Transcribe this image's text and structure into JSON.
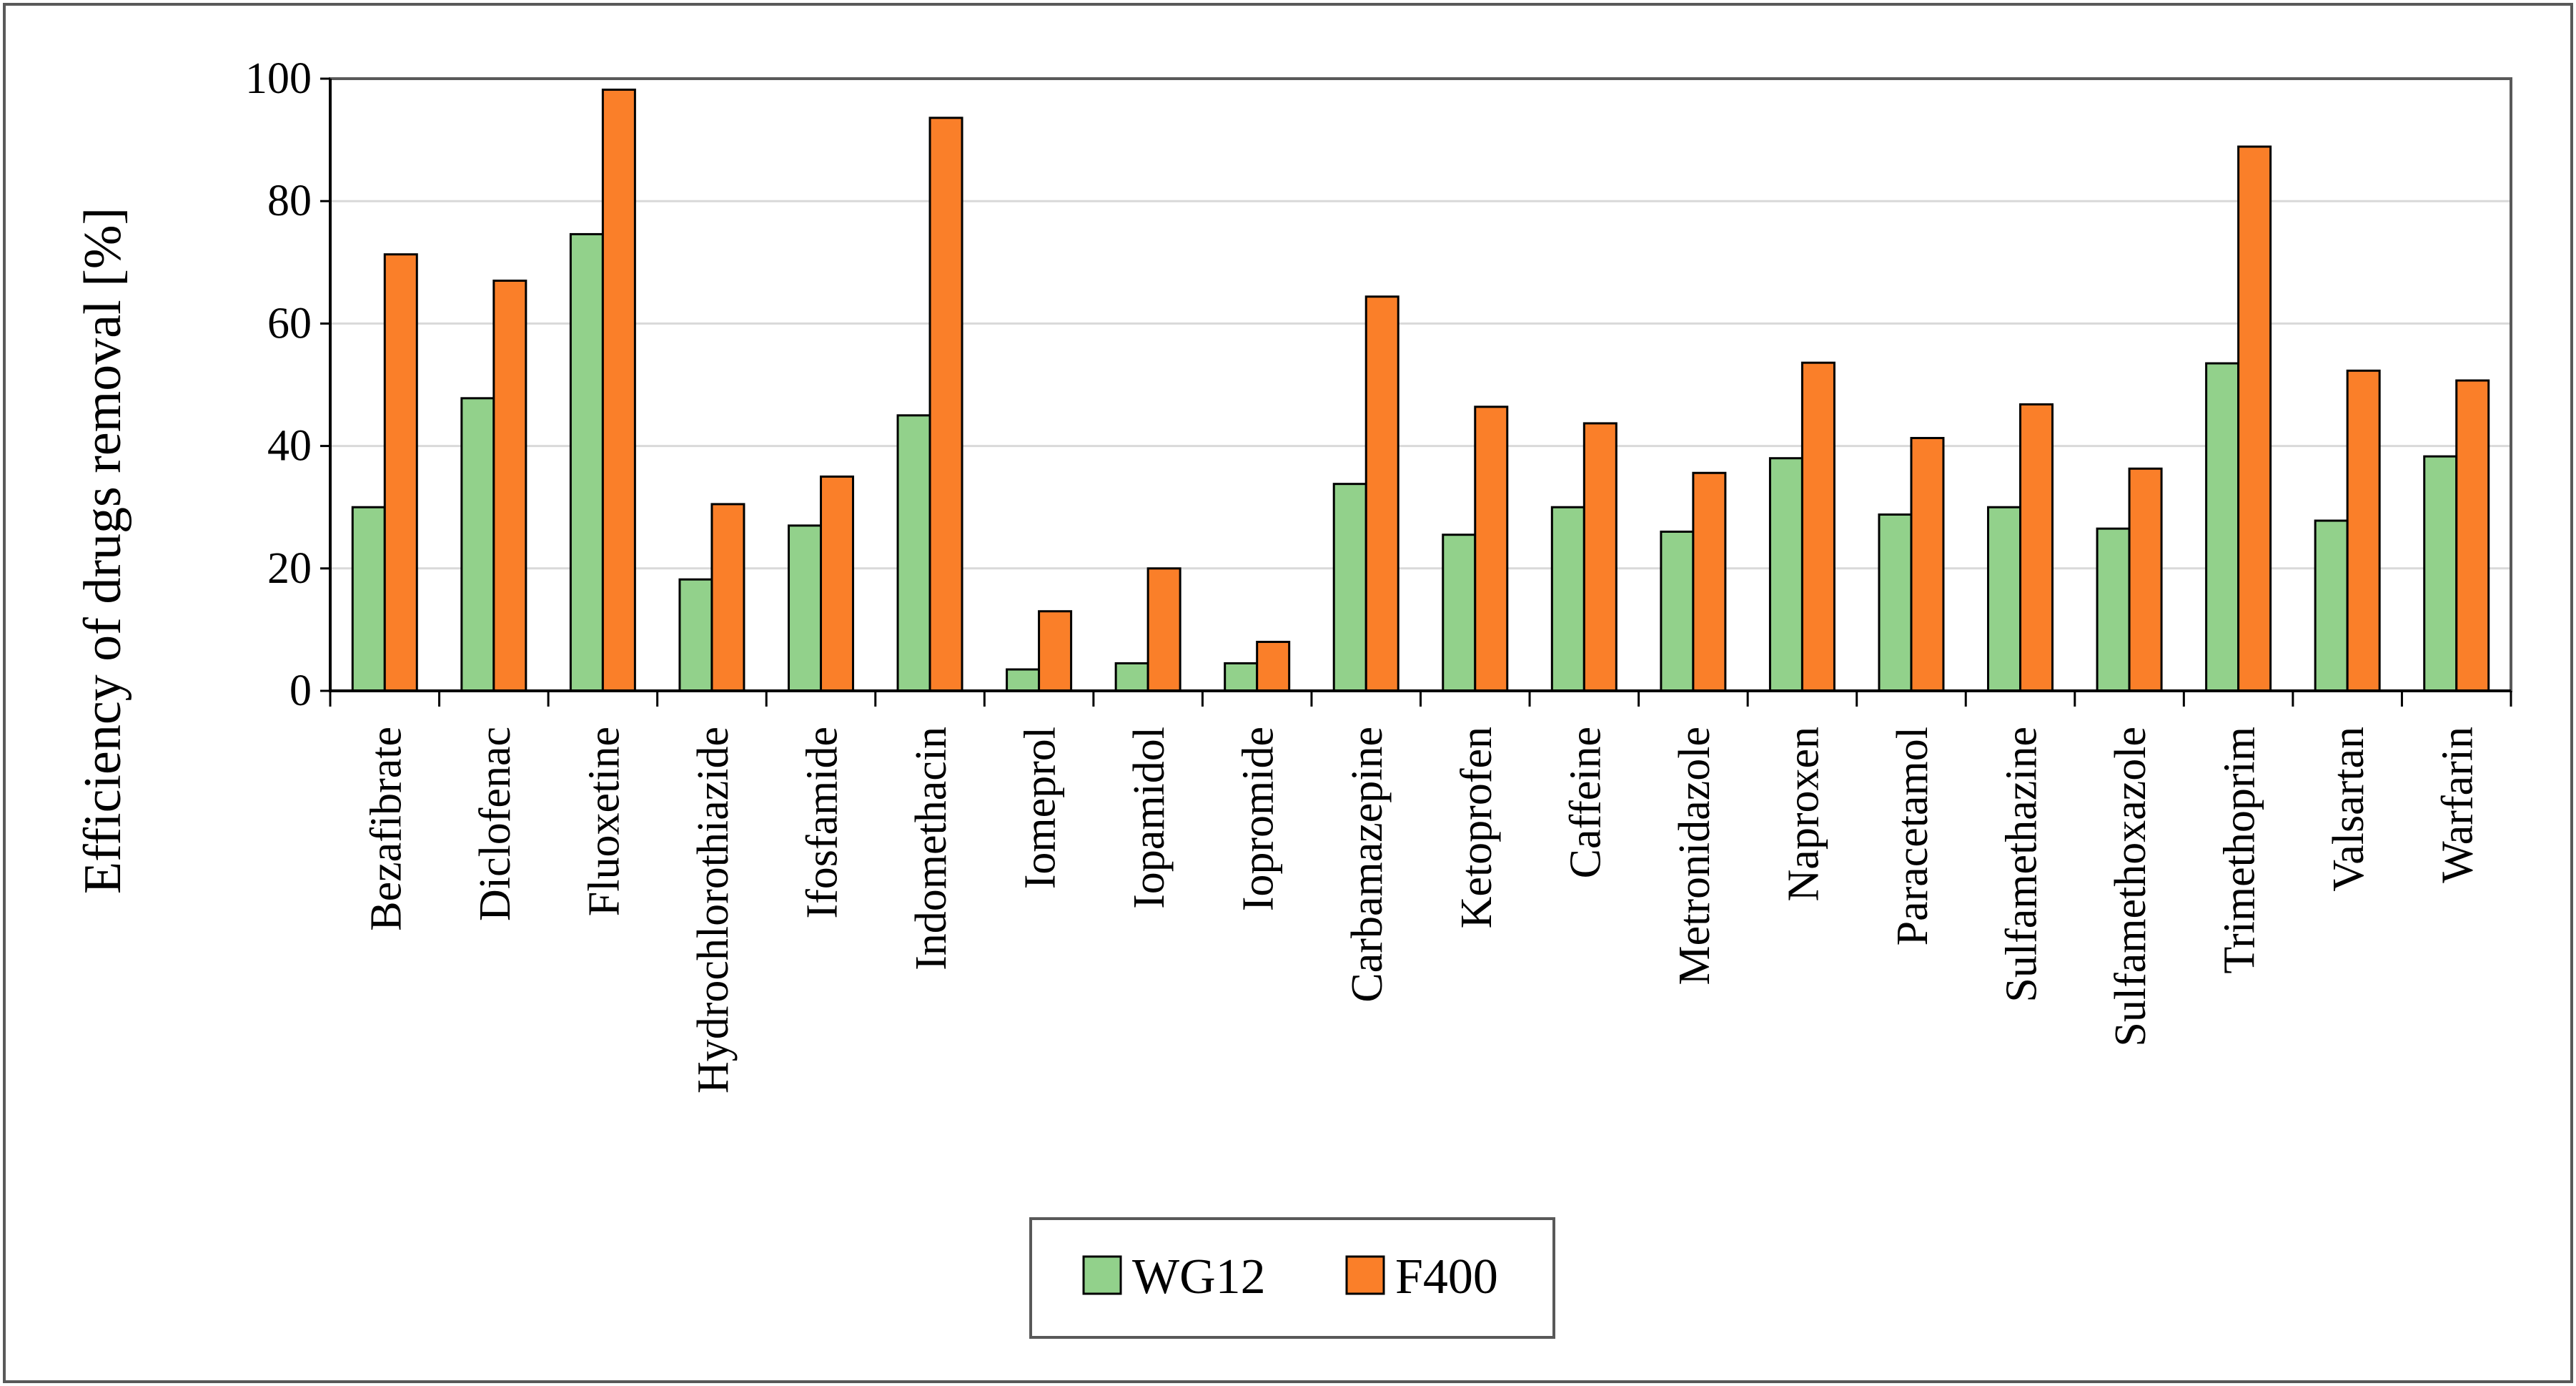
{
  "chart_data": {
    "type": "bar",
    "title": "",
    "xlabel": "",
    "ylabel": "Efficiency of drugs removal [%]",
    "ylim": [
      0,
      100
    ],
    "yticks": [
      0,
      20,
      40,
      60,
      80,
      100
    ],
    "grid": true,
    "legend_position": "bottom",
    "categories": [
      "Bezafibrate",
      "Diclofenac",
      "Fluoxetine",
      "Hydrochlorothiazide",
      "Ifosfamide",
      "Indomethacin",
      "Iomeprol",
      "Iopamidol",
      "Iopromide",
      "Carbamazepine",
      "Ketoprofen",
      "Caffeine",
      "Metronidazole",
      "Naproxen",
      "Paracetamol",
      "Sulfamethazine",
      "Sulfamethoxazole",
      "Trimethoprim",
      "Valsartan",
      "Warfarin"
    ],
    "series": [
      {
        "name": "WG12",
        "color": "#92d18b",
        "values": [
          30,
          47.8,
          74.6,
          18.2,
          27,
          45,
          3.5,
          4.5,
          4.5,
          33.8,
          25.5,
          30,
          26,
          38,
          28.8,
          30,
          26.5,
          53.5,
          27.8,
          38.3
        ]
      },
      {
        "name": "F400",
        "color": "#fa7f29",
        "values": [
          71.3,
          67,
          98.2,
          30.5,
          35,
          93.6,
          13,
          20,
          8,
          64.4,
          46.4,
          43.7,
          35.6,
          53.6,
          41.3,
          46.8,
          36.3,
          88.9,
          52.3,
          50.7
        ]
      }
    ]
  }
}
